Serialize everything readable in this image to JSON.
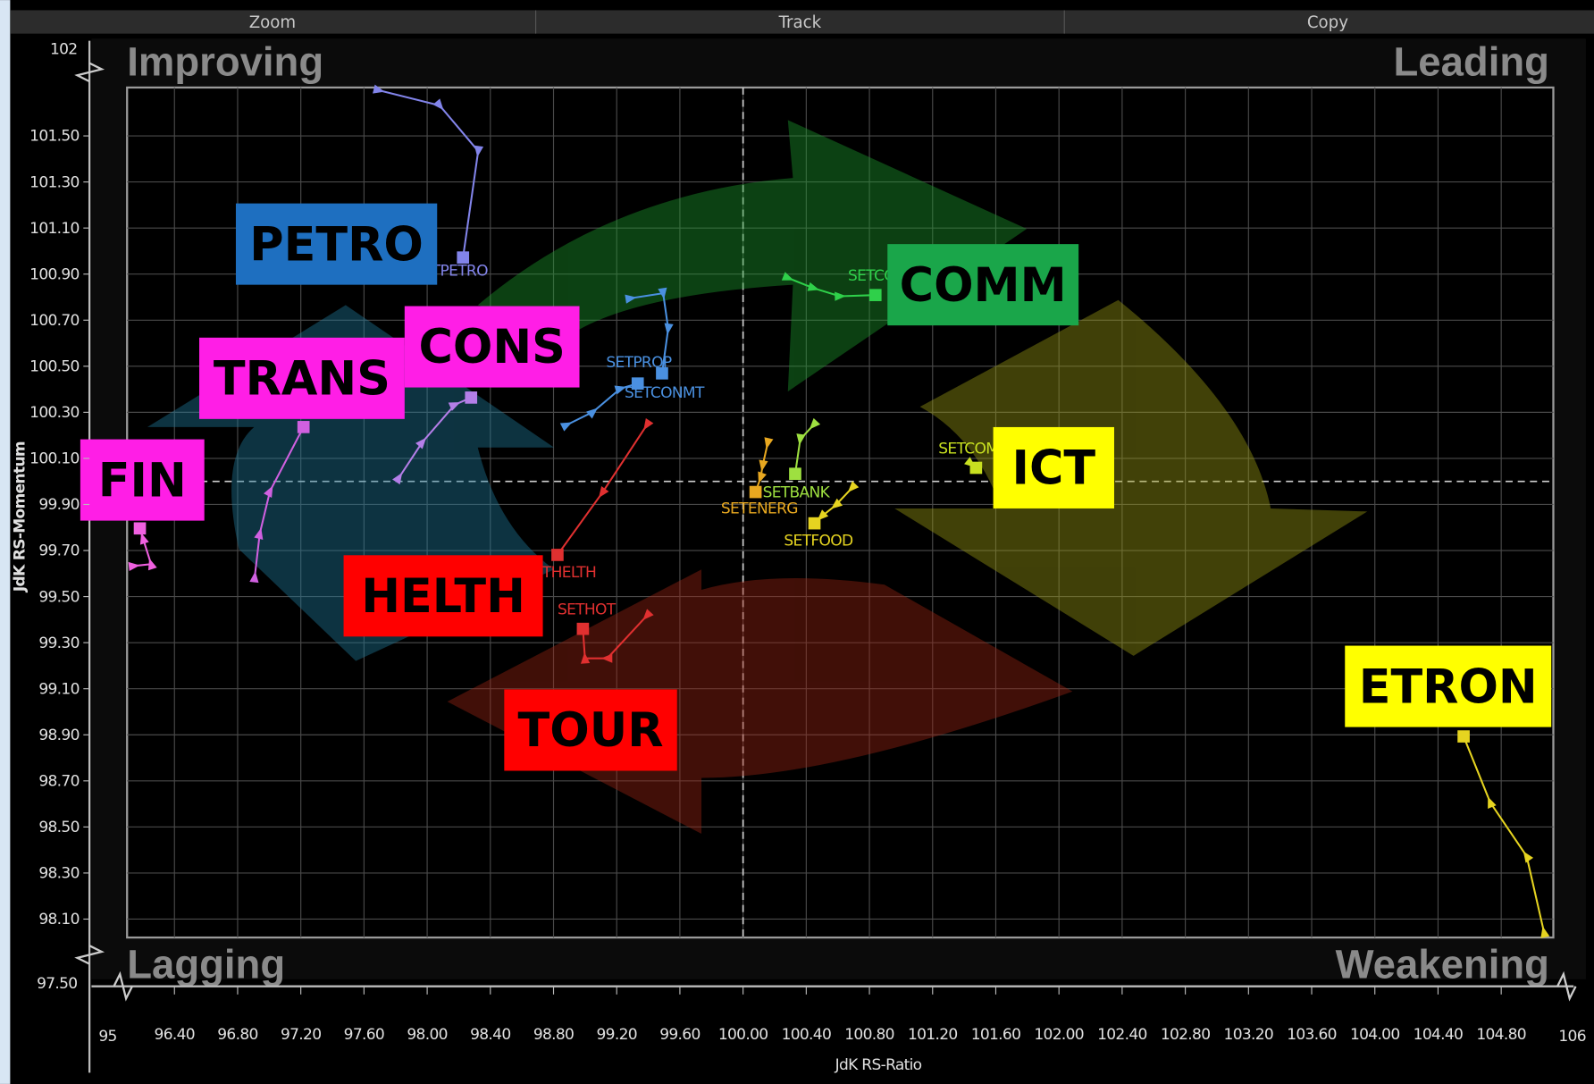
{
  "toolbar": [
    "Zoom",
    "Track",
    "Copy"
  ],
  "quadrants": {
    "top_left": "Improving",
    "top_right": "Leading",
    "bottom_left": "Lagging",
    "bottom_right": "Weakening"
  },
  "chart_data": {
    "type": "scatter",
    "xlabel": "JdK RS-Ratio",
    "ylabel": "JdK RS-Momentum",
    "xlim": [
      96.1,
      105.13
    ],
    "ylim": [
      98.02,
      101.71
    ],
    "xticks": [
      {
        "value": 96.4,
        "label": "96.40"
      },
      {
        "value": 96.8,
        "label": "96.80"
      },
      {
        "value": 97.2,
        "label": "97.20"
      },
      {
        "value": 97.6,
        "label": "97.60"
      },
      {
        "value": 98,
        "label": "98.00"
      },
      {
        "value": 98.4,
        "label": "98.40"
      },
      {
        "value": 98.8,
        "label": "98.80"
      },
      {
        "value": 99.2,
        "label": "99.20"
      },
      {
        "value": 99.6,
        "label": "99.60"
      },
      {
        "value": 100,
        "label": "100.00"
      },
      {
        "value": 100.4,
        "label": "100.40"
      },
      {
        "value": 100.8,
        "label": "100.80"
      },
      {
        "value": 101.2,
        "label": "101.20"
      },
      {
        "value": 101.6,
        "label": "101.60"
      },
      {
        "value": 102,
        "label": "102.00"
      },
      {
        "value": 102.4,
        "label": "102.40"
      },
      {
        "value": 102.8,
        "label": "102.80"
      },
      {
        "value": 103.2,
        "label": "103.20"
      },
      {
        "value": 103.6,
        "label": "103.60"
      },
      {
        "value": 104,
        "label": "104.00"
      },
      {
        "value": 104.4,
        "label": "104.40"
      },
      {
        "value": 104.8,
        "label": "104.80"
      }
    ],
    "yticks": [
      {
        "value": 101.5,
        "label": "101.50"
      },
      {
        "value": 101.3,
        "label": "101.30"
      },
      {
        "value": 101.1,
        "label": "101.10"
      },
      {
        "value": 100.9,
        "label": "100.90"
      },
      {
        "value": 100.7,
        "label": "100.70"
      },
      {
        "value": 100.5,
        "label": "100.50"
      },
      {
        "value": 100.3,
        "label": "100.30"
      },
      {
        "value": 100.1,
        "label": "100.10"
      },
      {
        "value": 99.9,
        "label": "99.90"
      },
      {
        "value": 99.7,
        "label": "99.70"
      },
      {
        "value": 99.5,
        "label": "99.50"
      },
      {
        "value": 99.3,
        "label": "99.30"
      },
      {
        "value": 99.1,
        "label": "99.10"
      },
      {
        "value": 98.9,
        "label": "98.90"
      },
      {
        "value": 98.7,
        "label": "98.70"
      },
      {
        "value": 98.5,
        "label": "98.50"
      },
      {
        "value": 98.3,
        "label": "98.30"
      },
      {
        "value": 98.1,
        "label": "98.10"
      }
    ],
    "x_break_ticks": [
      95,
      106
    ],
    "y_break_ticks": [
      102,
      {
        "value": 97.5,
        "label": "97.50"
      }
    ],
    "reference_lines": {
      "x": 100,
      "y": 100
    },
    "grid": true,
    "series": [
      {
        "name": "ETPETRO",
        "callout": "PETRO",
        "callout_color": "#1e6fc0",
        "color": "#8284ea",
        "x": [
          97.693,
          98.079,
          98.323,
          98.227
        ],
        "values": [
          101.698,
          101.632,
          101.434,
          100.972
        ]
      },
      {
        "callout": "CONS",
        "callout_color": "#ff1ee6",
        "color": "#b47ee8",
        "x": [
          97.821,
          97.969,
          98.175,
          98.278
        ],
        "values": [
          100.016,
          100.17,
          100.333,
          100.364
        ]
      },
      {
        "callout": "TRANS",
        "callout_color": "#ff1ee6",
        "color": "#d060e0",
        "x": [
          96.908,
          96.94,
          97.005,
          97.217
        ],
        "values": [
          99.584,
          99.773,
          99.958,
          100.236
        ]
      },
      {
        "callout": "FIN",
        "callout_color": "#ff1ee6",
        "color": "#f060e0",
        "x": [
          96.143,
          96.252,
          96.201,
          96.181
        ],
        "values": [
          99.633,
          99.641,
          99.752,
          99.796
        ]
      },
      {
        "name": "SETPROP",
        "color": "#4a90e0",
        "x": [
          99.288,
          99.494,
          99.526,
          99.487
        ],
        "values": [
          100.795,
          100.817,
          100.663,
          100.469
        ]
      },
      {
        "name": "SETCONMT",
        "color": "#4a90e0",
        "x": [
          98.883,
          99.05,
          99.224,
          99.333
        ],
        "values": [
          100.245,
          100.302,
          100.403,
          100.425
        ]
      },
      {
        "name": "THELTH",
        "callout": "HELTH",
        "callout_color": "#ff0000",
        "color": "#e03030",
        "x": [
          99.391,
          99.108,
          98.825
        ],
        "values": [
          100.245,
          99.95,
          99.681
        ]
      },
      {
        "name": "SETHOT",
        "callout": "TOUR",
        "callout_color": "#ff0000",
        "color": "#e03030",
        "x": [
          99.391,
          99.14,
          98.999,
          98.986
        ],
        "values": [
          99.417,
          99.232,
          99.232,
          99.36
        ]
      },
      {
        "name": "SETCO",
        "callout": "COMM",
        "callout_color": "#1aa64a",
        "color": "#2fd04a",
        "x": [
          100.285,
          100.446,
          100.613,
          100.838
        ],
        "values": [
          100.883,
          100.839,
          100.804,
          100.809
        ]
      },
      {
        "name": "SETBANK",
        "color": "#9ee040",
        "x": [
          100.446,
          100.362,
          100.33
        ],
        "values": [
          100.245,
          100.183,
          100.033
        ]
      },
      {
        "name": "SETENERG",
        "color": "#e8a820",
        "x": [
          100.156,
          100.124,
          100.111,
          100.079
        ],
        "values": [
          100.166,
          100.069,
          100.016,
          99.954
        ]
      },
      {
        "name": "SETFOOD",
        "color": "#e6d420",
        "x": [
          100.69,
          100.587,
          100.497,
          100.452
        ],
        "values": [
          99.972,
          99.897,
          99.848,
          99.818
        ]
      },
      {
        "name": "SETCOM",
        "callout": "ICT",
        "callout_color": "#ffff00",
        "color": "#c8e020",
        "x": [
          101.443,
          101.475
        ],
        "values": [
          100.077,
          100.059
        ]
      },
      {
        "callout": "ETRON",
        "callout_color": "#ffff00",
        "color": "#e6d420",
        "x": [
          105.071,
          104.961,
          104.73,
          104.562
        ],
        "values": [
          98.043,
          98.373,
          98.607,
          98.893
        ]
      }
    ]
  }
}
